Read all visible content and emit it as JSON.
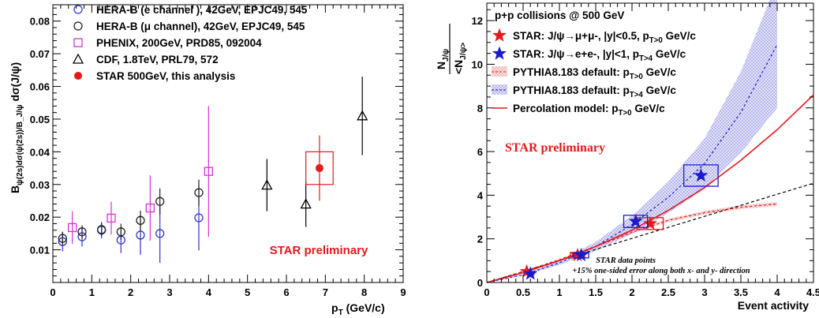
{
  "chart_data": [
    {
      "type": "scatter",
      "xlabel": "p_T (GeV/c)",
      "ylabel": "B_ψ(2s)dσ(ψ(2s))/B_J/ψ dσ(J/ψ)",
      "xlim": [
        0,
        9
      ],
      "ylim": [
        0,
        0.085
      ],
      "x_ticks": [
        "0",
        "1",
        "2",
        "3",
        "4",
        "5",
        "6",
        "7",
        "8",
        "9"
      ],
      "y_ticks": [
        "0.01",
        "0.02",
        "0.03",
        "0.04",
        "0.05",
        "0.06",
        "0.07",
        "0.08"
      ],
      "annotation": "STAR preliminary",
      "legend_position": "top-left",
      "series": [
        {
          "name": "HERA-B (e channel ), 42GeV, EPJC49, 545",
          "marker": "open-circle",
          "color": "#3333cc",
          "x": [
            0.25,
            0.75,
            1.25,
            1.75,
            2.25,
            2.75,
            3.75
          ],
          "y": [
            0.0125,
            0.014,
            0.016,
            0.013,
            0.0145,
            0.015,
            0.0198
          ],
          "err": [
            0.003,
            0.003,
            0.0025,
            0.004,
            0.006,
            0.009,
            0.01
          ]
        },
        {
          "name": "HERA-B (μ channel), 42GeV, EPJC49, 545",
          "marker": "open-circle",
          "color": "#222222",
          "x": [
            0.25,
            0.75,
            1.25,
            1.75,
            2.25,
            2.75,
            3.75
          ],
          "y": [
            0.0135,
            0.0155,
            0.0162,
            0.0155,
            0.019,
            0.0248,
            0.0275
          ],
          "err": [
            0.002,
            0.002,
            0.002,
            0.0025,
            0.003,
            0.004,
            0.004
          ]
        },
        {
          "name": "PHENIX, 200GeV, PRD85, 092004",
          "marker": "open-square",
          "color": "#d633d6",
          "x": [
            0.5,
            1.5,
            2.5,
            4.0
          ],
          "y": [
            0.0168,
            0.0197,
            0.0228,
            0.034
          ],
          "err": [
            0.005,
            0.005,
            0.01,
            0.02
          ]
        },
        {
          "name": "CDF, 1.8TeV, PRL79, 572",
          "marker": "open-triangle",
          "color": "#000000",
          "x": [
            5.5,
            6.5,
            7.95
          ],
          "y": [
            0.0298,
            0.024,
            0.051
          ],
          "err": [
            0.008,
            0.007,
            0.012
          ]
        },
        {
          "name": "STAR 500GeV, this analysis",
          "marker": "filled-circle",
          "color": "#e31a1c",
          "x": [
            6.85
          ],
          "y": [
            0.035
          ],
          "err": [
            0.01
          ],
          "sys_box": {
            "x": [
              6.5,
              7.2
            ],
            "y": [
              0.03,
              0.04
            ]
          }
        }
      ]
    },
    {
      "type": "line",
      "title": "p+p collisions @ 500 GeV",
      "xlabel": "Event activity",
      "ylabel": "N_J/ψ/<N_J/ψ>",
      "xlim": [
        0,
        4.5
      ],
      "ylim": [
        0,
        12.8
      ],
      "x_ticks": [
        "0",
        "0.5",
        "1",
        "1.5",
        "2",
        "2.5",
        "3",
        "3.5",
        "4",
        "4.5"
      ],
      "y_ticks": [
        "0",
        "2",
        "4",
        "6",
        "8",
        "10",
        "12"
      ],
      "annotation": "STAR preliminary",
      "note_lines": [
        "STAR data points",
        "+15% one-sided error along both x- and y- direction"
      ],
      "legend_position": "top-left",
      "series": [
        {
          "name": "STAR: J/ψ→μ+μ-, |y|<0.5, p_T>0 GeV/c",
          "marker": "star",
          "color": "#e31a1c",
          "x": [
            0.55,
            1.25,
            2.25
          ],
          "y": [
            0.5,
            1.25,
            2.7
          ]
        },
        {
          "name": "STAR: J/ψ→e+e-, |y|<1, p_T>4 GeV/c",
          "marker": "star",
          "color": "#1a1acc",
          "x": [
            0.6,
            1.3,
            2.05,
            2.95
          ],
          "y": [
            0.4,
            1.25,
            2.8,
            4.9
          ]
        },
        {
          "name": "PYTHIA8.183 default: p_T>0 GeV/c",
          "style": "dashed-band",
          "color": "#e31a1c",
          "x": [
            0,
            0.5,
            1,
            1.5,
            2,
            2.5,
            3,
            3.5,
            4
          ],
          "y": [
            0,
            0.5,
            1.05,
            1.65,
            2.3,
            2.85,
            3.2,
            3.45,
            3.6
          ]
        },
        {
          "name": "PYTHIA8.183 default: p_T>4 GeV/c",
          "style": "dashed-band",
          "color": "#1a1acc",
          "x": [
            0,
            0.5,
            1,
            1.5,
            2,
            2.5,
            3,
            3.5,
            4
          ],
          "y": [
            0,
            0.35,
            0.9,
            1.65,
            2.65,
            3.9,
            5.45,
            7.8,
            10.9
          ]
        },
        {
          "name": "Percolation model: p_T>0 GeV/c",
          "style": "solid",
          "color": "#e31a1c",
          "x": [
            0,
            0.5,
            1,
            1.5,
            2,
            2.5,
            3,
            3.5,
            4,
            4.5
          ],
          "y": [
            0,
            0.45,
            1.0,
            1.65,
            2.4,
            3.3,
            4.35,
            5.6,
            7.0,
            8.6
          ]
        },
        {
          "name": "",
          "style": "dashed",
          "color": "#000000",
          "x": [
            0,
            4.5
          ],
          "y": [
            0,
            4.55
          ]
        }
      ]
    }
  ]
}
